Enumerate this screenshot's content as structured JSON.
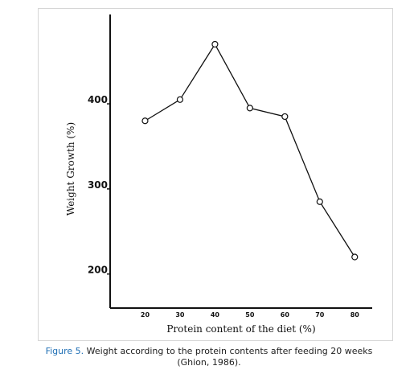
{
  "chart_data": {
    "type": "line",
    "ylabel": "Weight Growth (%)",
    "xlabel": "Protein content of the diet (%)",
    "x": [
      20,
      30,
      40,
      50,
      60,
      70,
      80
    ],
    "x_tick_labels": [
      "20",
      "30",
      "40",
      "50",
      "60",
      "70",
      "80"
    ],
    "y_tick_values": [
      200,
      300,
      400
    ],
    "y_tick_labels": [
      "200",
      "300",
      "400"
    ],
    "series": [
      {
        "values": [
          380,
          405,
          470,
          395,
          385,
          285,
          220
        ]
      }
    ],
    "xlim": [
      10,
      85
    ],
    "ylim": [
      160,
      505
    ],
    "grid": false,
    "marker": "open-circle",
    "line_color": "#111111"
  },
  "caption": {
    "label": "Figure 5.",
    "text": " Weight according to the protein contents after feeding 20 weeks (Ghion, 1986)."
  }
}
